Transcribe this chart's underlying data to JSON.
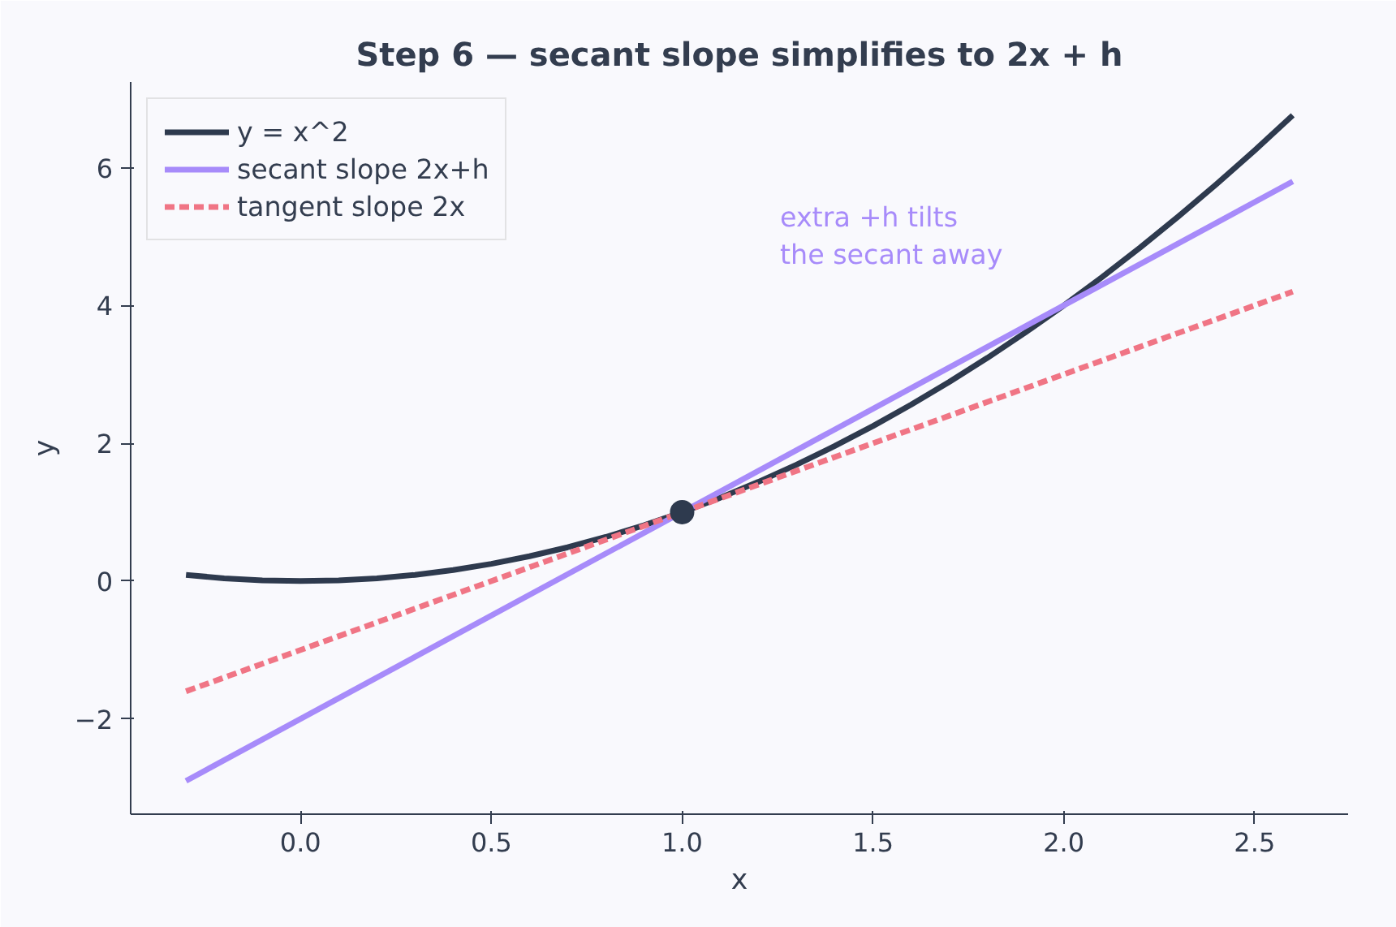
{
  "chart_data": {
    "type": "line",
    "title": "Step 6 — secant slope simplifies to 2x + h",
    "xlabel": "x",
    "ylabel": "y",
    "xlim": [
      -0.445,
      2.745
    ],
    "ylim": [
      -3.383,
      7.243
    ],
    "xticks": [
      {
        "value": 0,
        "label": "0.0"
      },
      0.5,
      {
        "value": 1,
        "label": "1.0"
      },
      1.5,
      {
        "value": 2,
        "label": "2.0"
      },
      2.5
    ],
    "yticks": [
      {
        "value": -2,
        "label": "−2"
      },
      0,
      2,
      4,
      6
    ],
    "grid": false,
    "legend": "top left",
    "series": [
      {
        "name": "y = x^2",
        "color": "#2e3a4e",
        "line_style": "solid",
        "x": [
          -0.3,
          -0.2,
          -0.1,
          0,
          0.1,
          0.2,
          0.3,
          0.4,
          0.5,
          0.6,
          0.7,
          0.8,
          0.9,
          1.0,
          1.1,
          1.2,
          1.3,
          1.4,
          1.5,
          1.6,
          1.7,
          1.8,
          1.9,
          2.0,
          2.1,
          2.2,
          2.3,
          2.4,
          2.5,
          2.6
        ],
        "values": [
          0.09,
          0.04,
          0.01,
          0,
          0.01,
          0.04,
          0.09,
          0.16,
          0.25,
          0.36,
          0.49,
          0.64,
          0.81,
          1,
          1.21,
          1.44,
          1.69,
          1.96,
          2.25,
          2.56,
          2.89,
          3.24,
          3.61,
          4,
          4.41,
          4.84,
          5.29,
          5.76,
          6.25,
          6.76
        ]
      },
      {
        "name": "secant slope 2x+h",
        "color": "#a78bfa",
        "line_style": "solid",
        "x": [
          -0.3,
          2.6
        ],
        "values": [
          -2.9,
          5.8
        ]
      },
      {
        "name": "tangent slope 2x",
        "color": "#f07585",
        "line_style": "dashed",
        "x": [
          -0.3,
          2.6
        ],
        "values": [
          -1.6,
          4.2
        ]
      },
      {
        "type": "scatter",
        "marker": "circle",
        "color": "#2e3a4e",
        "x": [
          1
        ],
        "values": [
          1
        ]
      }
    ],
    "annotations": [
      "extra +h tilts\nthe secant away"
    ]
  }
}
